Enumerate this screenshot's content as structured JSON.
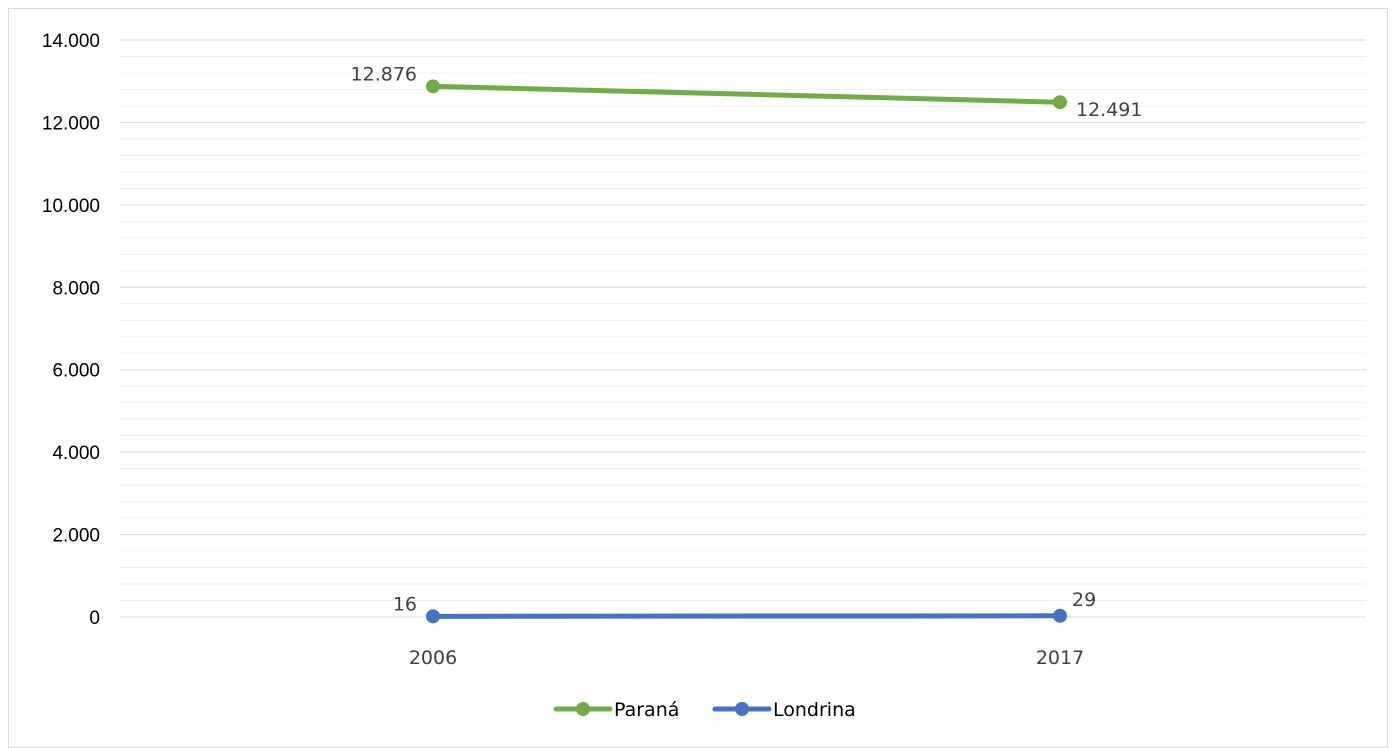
{
  "chart_data": {
    "type": "line",
    "categories": [
      "2006",
      "2017"
    ],
    "series": [
      {
        "name": "Paraná",
        "values": [
          12876,
          12491
        ],
        "labels": [
          "12.876",
          "12.491"
        ],
        "color": "#70ad47"
      },
      {
        "name": "Londrina",
        "values": [
          16,
          29
        ],
        "labels": [
          "16",
          "29"
        ],
        "color": "#4472c4"
      }
    ],
    "ylim": [
      0,
      14000
    ],
    "yticks": [
      0,
      2000,
      4000,
      6000,
      8000,
      10000,
      12000,
      14000
    ],
    "ytick_labels": [
      "0",
      "2.000",
      "4.000",
      "6.000",
      "8.000",
      "10.000",
      "12.000",
      "14.000"
    ],
    "grid": true,
    "legend_position": "bottom",
    "title": "",
    "xlabel": "",
    "ylabel": ""
  }
}
